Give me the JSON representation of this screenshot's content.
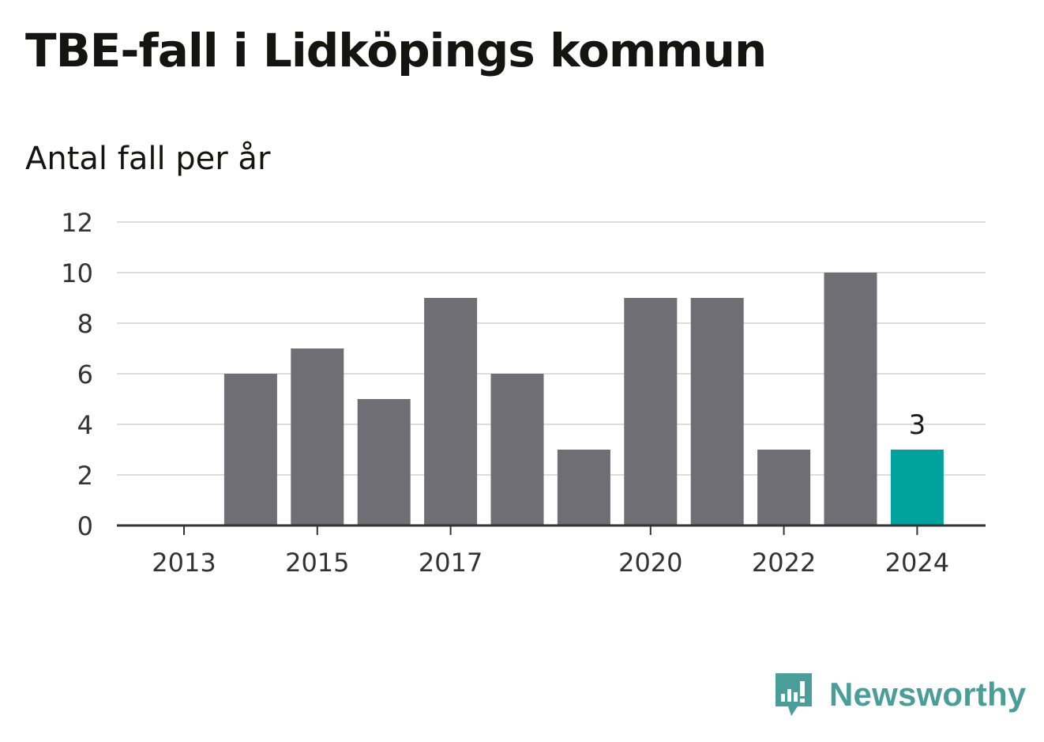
{
  "title": "TBE-fall i Lidköpings kommun",
  "subtitle": "Antal fall per år",
  "brand": {
    "name": "Newsworthy",
    "icon": "newsworthy-logo-icon",
    "color": "#4a9e99"
  },
  "colors": {
    "bar": "#6f6e74",
    "highlight": "#00a39b",
    "grid": "#dddddd",
    "axis": "#333333",
    "text": "#333333"
  },
  "chart_data": {
    "type": "bar",
    "x": [
      2013,
      2014,
      2015,
      2016,
      2017,
      2018,
      2019,
      2020,
      2021,
      2022,
      2023,
      2024
    ],
    "values": [
      0,
      6,
      7,
      5,
      9,
      6,
      3,
      9,
      9,
      3,
      10,
      3
    ],
    "xticks": [
      "2013",
      "2015",
      "2017",
      "2020",
      "2022",
      "2024"
    ],
    "yticks": [
      0,
      2,
      4,
      6,
      8,
      10,
      12
    ],
    "ylim": [
      0,
      12
    ],
    "highlight": {
      "x": 2024,
      "label": "3"
    },
    "grid": true,
    "title": "TBE-fall i Lidköpings kommun",
    "ylabel": "Antal fall per år",
    "xlabel": ""
  }
}
